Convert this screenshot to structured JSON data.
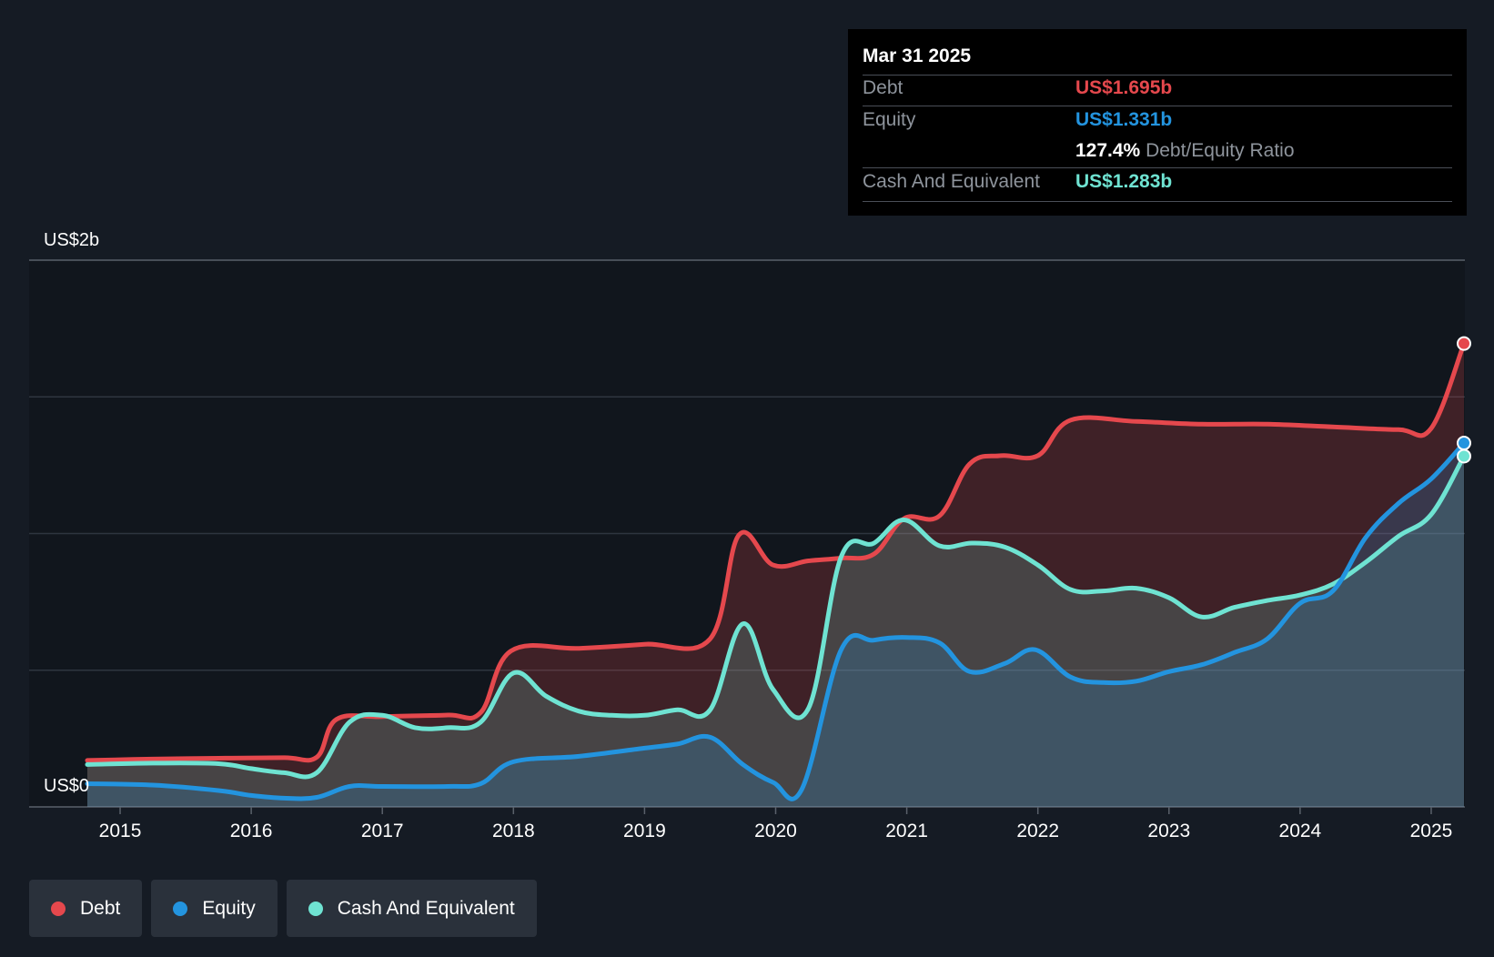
{
  "tooltip": {
    "date": "Mar 31 2025",
    "rows": [
      {
        "label": "Debt",
        "value": "US$1.695b",
        "color": "#e5484d"
      },
      {
        "label": "Equity",
        "value": "US$1.331b",
        "color": "#2394df"
      },
      {
        "label": "Cash And Equivalent",
        "value": "US$1.283b",
        "color": "#6fe3d2"
      }
    ],
    "ratio_value": "127.4%",
    "ratio_label": "Debt/Equity Ratio"
  },
  "legend": [
    {
      "label": "Debt",
      "color": "#e5484d"
    },
    {
      "label": "Equity",
      "color": "#2394df"
    },
    {
      "label": "Cash And Equivalent",
      "color": "#6fe3d2"
    }
  ],
  "chart_data": {
    "type": "area",
    "y_tick_labels": [
      "US$2b",
      "US$0"
    ],
    "ylim": [
      0,
      2.0
    ],
    "y_gridlines": [
      0,
      0.5,
      1.0,
      1.5,
      2.0
    ],
    "x_tick_labels": [
      "2015",
      "2016",
      "2017",
      "2018",
      "2019",
      "2020",
      "2021",
      "2022",
      "2023",
      "2024",
      "2025"
    ],
    "xlim": [
      2014.7,
      2025.25
    ],
    "series": [
      {
        "name": "Debt",
        "color": "#e5484d",
        "points": [
          [
            2014.75,
            0.17
          ],
          [
            2015.25,
            0.175
          ],
          [
            2015.75,
            0.178
          ],
          [
            2016.25,
            0.18
          ],
          [
            2016.5,
            0.182
          ],
          [
            2016.65,
            0.32
          ],
          [
            2017.0,
            0.33
          ],
          [
            2017.5,
            0.336
          ],
          [
            2017.75,
            0.345
          ],
          [
            2017.98,
            0.57
          ],
          [
            2018.5,
            0.58
          ],
          [
            2019.0,
            0.595
          ],
          [
            2019.5,
            0.615
          ],
          [
            2019.72,
            0.995
          ],
          [
            2019.98,
            0.885
          ],
          [
            2020.25,
            0.9
          ],
          [
            2020.5,
            0.91
          ],
          [
            2020.75,
            0.925
          ],
          [
            2020.98,
            1.055
          ],
          [
            2021.25,
            1.065
          ],
          [
            2021.48,
            1.255
          ],
          [
            2021.72,
            1.285
          ],
          [
            2022.0,
            1.285
          ],
          [
            2022.25,
            1.415
          ],
          [
            2022.75,
            1.41
          ],
          [
            2023.25,
            1.4
          ],
          [
            2023.75,
            1.4
          ],
          [
            2024.25,
            1.39
          ],
          [
            2024.75,
            1.38
          ],
          [
            2025.0,
            1.385
          ],
          [
            2025.25,
            1.695
          ]
        ]
      },
      {
        "name": "Equity",
        "color": "#2394df",
        "points": [
          [
            2014.75,
            0.085
          ],
          [
            2015.25,
            0.08
          ],
          [
            2015.75,
            0.06
          ],
          [
            2016.0,
            0.042
          ],
          [
            2016.25,
            0.032
          ],
          [
            2016.5,
            0.035
          ],
          [
            2016.75,
            0.075
          ],
          [
            2017.0,
            0.075
          ],
          [
            2017.5,
            0.075
          ],
          [
            2017.75,
            0.085
          ],
          [
            2018.0,
            0.165
          ],
          [
            2018.5,
            0.185
          ],
          [
            2019.0,
            0.215
          ],
          [
            2019.25,
            0.23
          ],
          [
            2019.5,
            0.255
          ],
          [
            2019.75,
            0.155
          ],
          [
            2019.98,
            0.09
          ],
          [
            2020.2,
            0.065
          ],
          [
            2020.5,
            0.575
          ],
          [
            2020.75,
            0.61
          ],
          [
            2021.0,
            0.62
          ],
          [
            2021.25,
            0.6
          ],
          [
            2021.48,
            0.495
          ],
          [
            2021.75,
            0.525
          ],
          [
            2021.98,
            0.575
          ],
          [
            2022.25,
            0.475
          ],
          [
            2022.5,
            0.455
          ],
          [
            2022.75,
            0.46
          ],
          [
            2023.0,
            0.495
          ],
          [
            2023.25,
            0.52
          ],
          [
            2023.5,
            0.565
          ],
          [
            2023.75,
            0.615
          ],
          [
            2024.0,
            0.745
          ],
          [
            2024.25,
            0.79
          ],
          [
            2024.5,
            0.985
          ],
          [
            2024.75,
            1.11
          ],
          [
            2025.0,
            1.2
          ],
          [
            2025.25,
            1.331
          ]
        ]
      },
      {
        "name": "Cash And Equivalent",
        "color": "#6fe3d2",
        "points": [
          [
            2014.75,
            0.155
          ],
          [
            2015.25,
            0.16
          ],
          [
            2015.75,
            0.158
          ],
          [
            2016.0,
            0.14
          ],
          [
            2016.25,
            0.125
          ],
          [
            2016.5,
            0.125
          ],
          [
            2016.75,
            0.31
          ],
          [
            2017.0,
            0.335
          ],
          [
            2017.25,
            0.29
          ],
          [
            2017.5,
            0.29
          ],
          [
            2017.75,
            0.31
          ],
          [
            2018.0,
            0.49
          ],
          [
            2018.25,
            0.405
          ],
          [
            2018.5,
            0.35
          ],
          [
            2018.75,
            0.335
          ],
          [
            2019.0,
            0.335
          ],
          [
            2019.25,
            0.355
          ],
          [
            2019.5,
            0.355
          ],
          [
            2019.75,
            0.67
          ],
          [
            2019.98,
            0.43
          ],
          [
            2020.25,
            0.36
          ],
          [
            2020.5,
            0.915
          ],
          [
            2020.75,
            0.965
          ],
          [
            2020.98,
            1.05
          ],
          [
            2021.25,
            0.955
          ],
          [
            2021.5,
            0.965
          ],
          [
            2021.75,
            0.95
          ],
          [
            2022.0,
            0.885
          ],
          [
            2022.25,
            0.795
          ],
          [
            2022.5,
            0.79
          ],
          [
            2022.75,
            0.8
          ],
          [
            2023.0,
            0.765
          ],
          [
            2023.25,
            0.695
          ],
          [
            2023.5,
            0.73
          ],
          [
            2023.75,
            0.755
          ],
          [
            2024.0,
            0.775
          ],
          [
            2024.25,
            0.815
          ],
          [
            2024.5,
            0.895
          ],
          [
            2024.75,
            0.99
          ],
          [
            2025.0,
            1.07
          ],
          [
            2025.25,
            1.283
          ]
        ]
      }
    ]
  }
}
